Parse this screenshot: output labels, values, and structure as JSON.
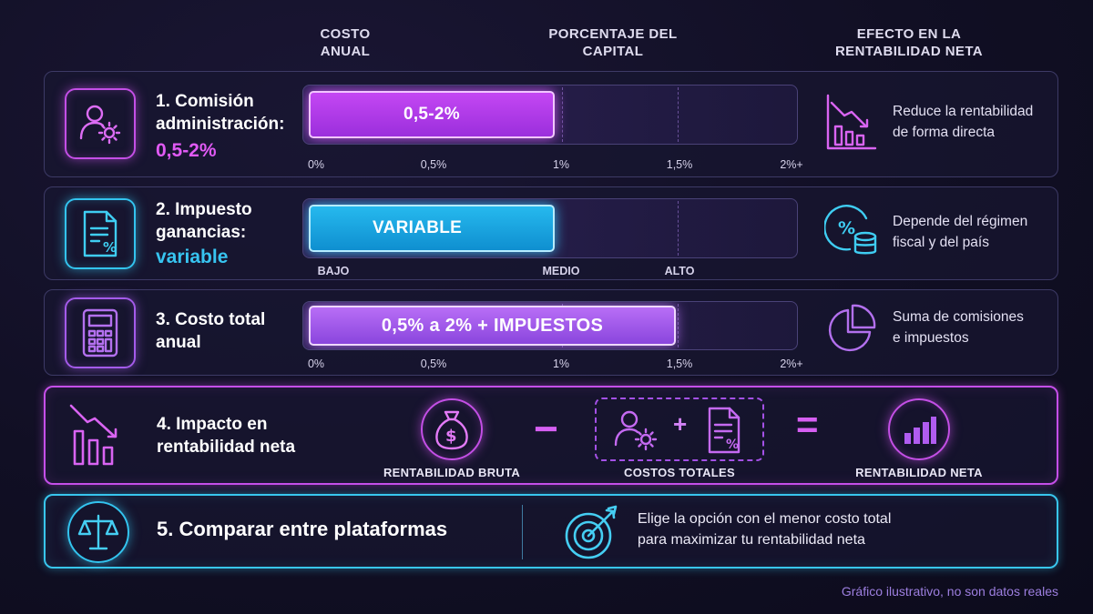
{
  "headers": {
    "costo_anual": "COSTO\nANUAL",
    "porcentaje": "PORCENTAJE DEL\nCAPITAL",
    "efecto": "EFECTO EN LA\nRENTABILIDAD NETA"
  },
  "rows": [
    {
      "title": "1. Comisión\n administración:",
      "accent": "0,5-2%",
      "bar_label": "0,5-2%",
      "bar_fraction": 0.51,
      "ticks": [
        "0%",
        "0,5%",
        "1%",
        "1,5%",
        "2%+"
      ],
      "effect": "Reduce la rentabilidad\nde forma directa",
      "icon": "user-gear-icon",
      "effect_icon": "declining-bar-chart-icon"
    },
    {
      "title": "2. Impuesto\nganancias:",
      "accent": "variable",
      "bar_label": "VARIABLE",
      "bar_fraction": 0.51,
      "ticks": [
        "BAJO",
        "MEDIO",
        "ALTO"
      ],
      "effect": "Depende del régimen\nfiscal y del país",
      "icon": "tax-document-icon",
      "effect_icon": "percent-coins-icon"
    },
    {
      "title": "3. Costo total\nanual",
      "bar_label": "0,5% a 2% + IMPUESTOS",
      "bar_fraction": 0.76,
      "ticks": [
        "0%",
        "0,5%",
        "1%",
        "1,5%",
        "2%+"
      ],
      "effect": "Suma de comisiones\ne impuestos",
      "icon": "calculator-icon",
      "effect_icon": "pie-chart-icon"
    }
  ],
  "impact": {
    "title": "4. Impacto en\nrentabilidad neta",
    "minus": "−",
    "plus": "+",
    "equals": "=",
    "gross_label": "RENTABILIDAD BRUTA",
    "costs_label": "COSTOS TOTALES",
    "net_label": "RENTABILIDAD NETA",
    "gross_symbol": "$",
    "tax_symbol": "%"
  },
  "compare": {
    "title": "5. Comparar entre plataformas",
    "advice": "Elige la opción con el menor costo total\npara maximizar tu rentabilidad neta"
  },
  "footnote": "Gráfico ilustrativo, no son datos reales",
  "colors": {
    "pink": "#c447f3",
    "cyan": "#26b9ee",
    "violet": "#b86ef6",
    "background": "#110f24"
  }
}
